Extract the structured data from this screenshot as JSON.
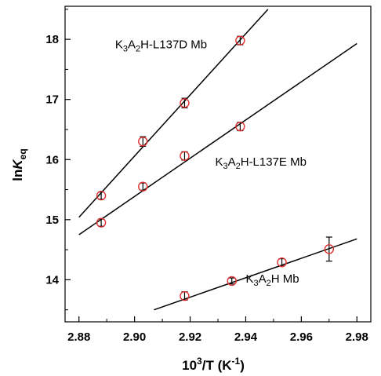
{
  "chart_data": {
    "type": "scatter",
    "xlabel": {
      "base": "10",
      "exp": "3",
      "mid": "/T (K",
      "exp2": "-1",
      "end": ")"
    },
    "ylabel": {
      "main": "ln",
      "italic": "K",
      "sub": "eq"
    },
    "xlim": [
      2.875,
      2.985
    ],
    "ylim": [
      13.3,
      18.55
    ],
    "xticks": [
      "2.88",
      "2.90",
      "2.92",
      "2.94",
      "2.96",
      "2.98"
    ],
    "yticks": [
      "14",
      "15",
      "16",
      "17",
      "18"
    ],
    "marker_color": "#e03030",
    "line_color": "#000000",
    "series": [
      {
        "label": {
          "a": "K",
          "a_sub": "3",
          "b": "A",
          "b_sub": "2",
          "rest": "H-L137D Mb"
        },
        "label_pos": [
          2.893,
          17.85
        ],
        "points": [
          {
            "x": 2.888,
            "y": 15.4,
            "err": 0.06
          },
          {
            "x": 2.903,
            "y": 16.3,
            "err": 0.08
          },
          {
            "x": 2.918,
            "y": 16.94,
            "err": 0.08
          },
          {
            "x": 2.938,
            "y": 17.98,
            "err": 0.07
          }
        ],
        "fit": [
          [
            2.88,
            15.04
          ],
          [
            2.948,
            18.5
          ]
        ]
      },
      {
        "label": {
          "a": "K",
          "a_sub": "3",
          "b": "A",
          "b_sub": "2",
          "rest": "H-L137E Mb"
        },
        "label_pos": [
          2.929,
          15.9
        ],
        "points": [
          {
            "x": 2.888,
            "y": 14.95,
            "err": 0.06
          },
          {
            "x": 2.903,
            "y": 15.55,
            "err": 0.06
          },
          {
            "x": 2.918,
            "y": 16.06,
            "err": 0.07
          },
          {
            "x": 2.938,
            "y": 16.55,
            "err": 0.07
          }
        ],
        "fit": [
          [
            2.88,
            14.75
          ],
          [
            2.98,
            17.93
          ]
        ]
      },
      {
        "label": {
          "a": "K",
          "a_sub": "3",
          "b": "A",
          "b_sub": "2",
          "rest": "H Mb"
        },
        "label_pos": [
          2.94,
          13.95
        ],
        "points": [
          {
            "x": 2.918,
            "y": 13.73,
            "err": 0.07
          },
          {
            "x": 2.935,
            "y": 13.98,
            "err": 0.05
          },
          {
            "x": 2.953,
            "y": 14.29,
            "err": 0.06
          },
          {
            "x": 2.97,
            "y": 14.51,
            "err": 0.2
          }
        ],
        "fit": [
          [
            2.907,
            13.5
          ],
          [
            2.98,
            14.68
          ]
        ]
      }
    ]
  }
}
